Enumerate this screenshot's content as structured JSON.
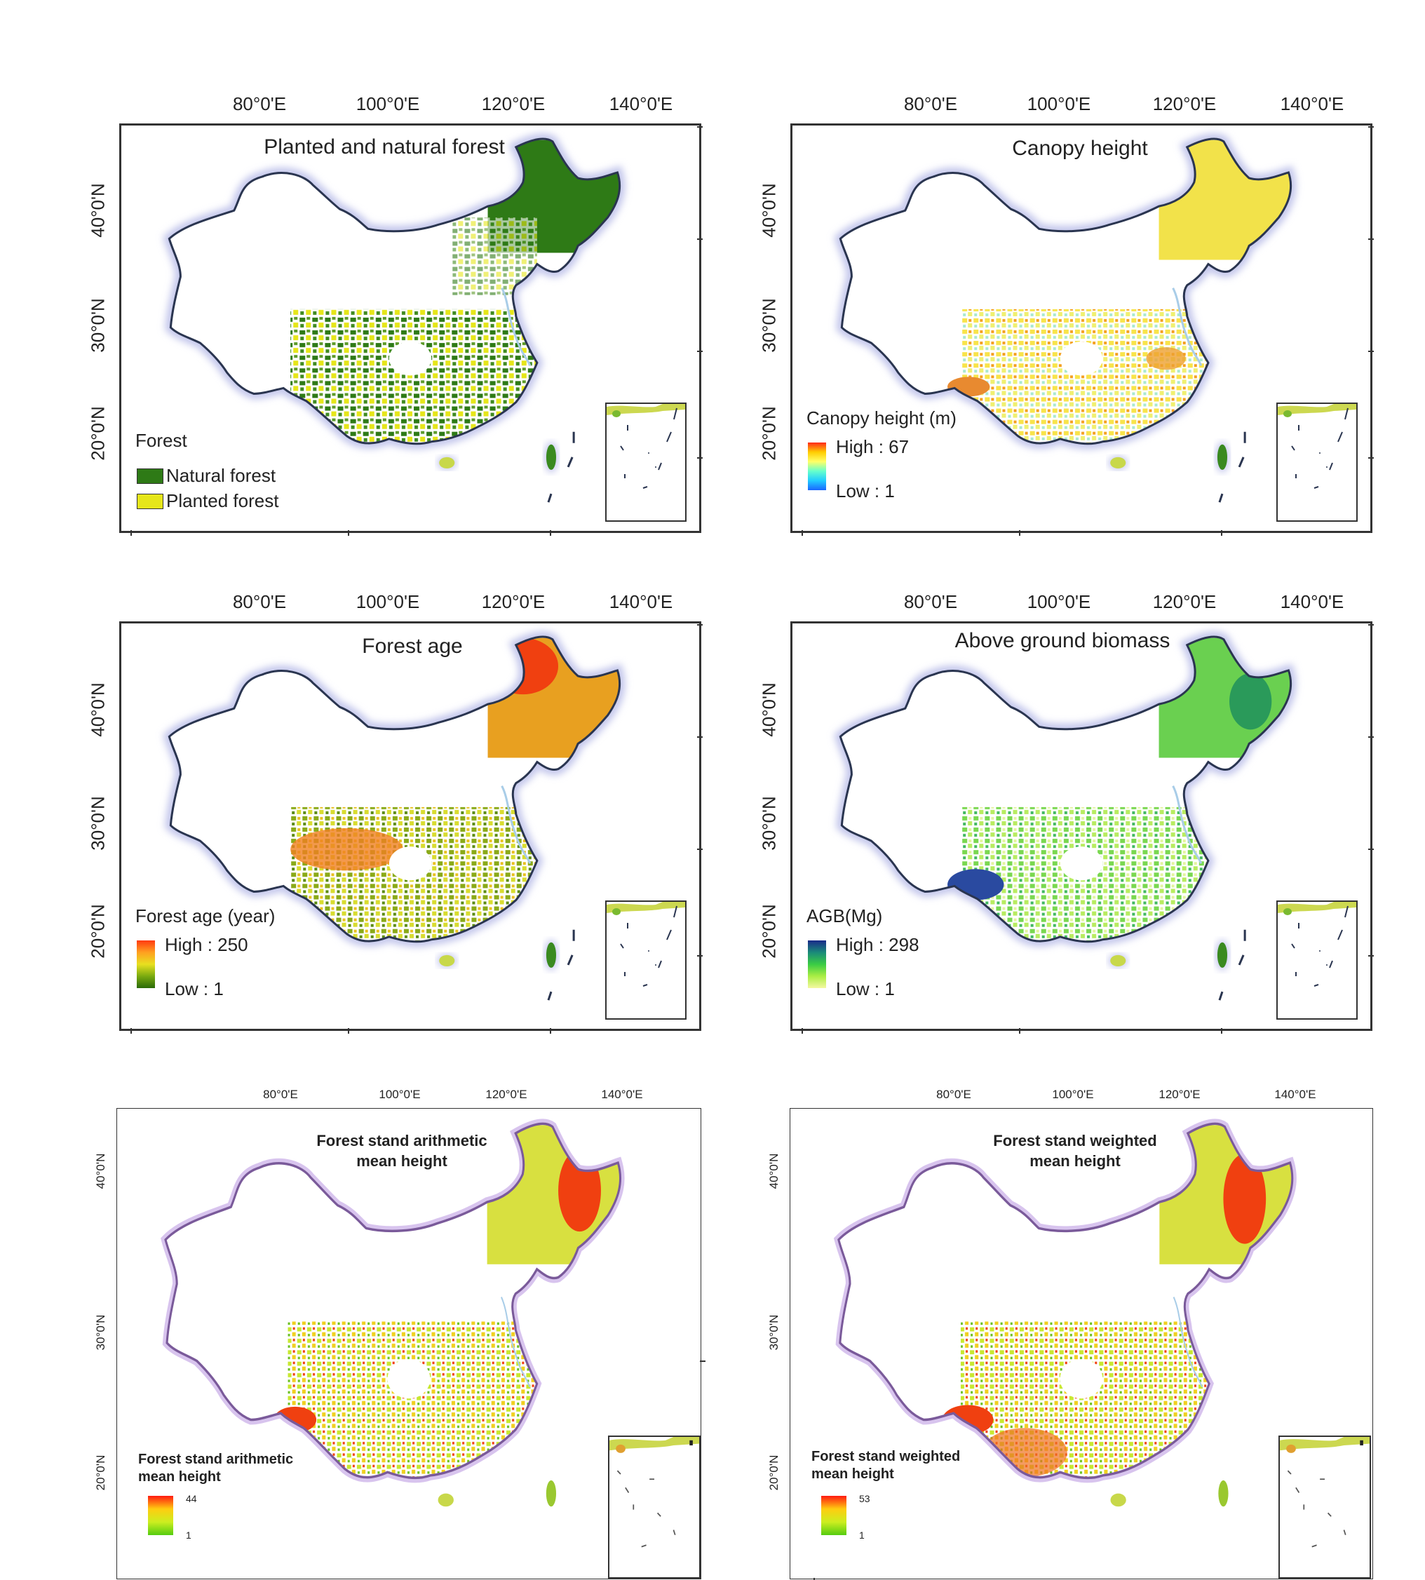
{
  "colors": {
    "natural": "#2e7a16",
    "planted": "#e6e61a",
    "boundary": "#2a3550",
    "boundary_glow": "#c5c8ec",
    "boundary_purple": "#7a5a9a",
    "river": "#a9cde8"
  },
  "panels": [
    {
      "id": "planted-natural",
      "title": "Planted and natural forest",
      "lon_labels": [
        "80°0'E",
        "100°0'E",
        "120°0'E",
        "140°0'E"
      ],
      "lat_labels": [
        "40°0'N",
        "30°0'N",
        "20°0'N"
      ],
      "legend": {
        "title": "Forest",
        "items": [
          {
            "label": "Natural forest",
            "color": "#2e7a16"
          },
          {
            "label": "Planted forest",
            "color": "#e6e61a"
          }
        ]
      }
    },
    {
      "id": "canopy-height",
      "title": "Canopy height",
      "lon_labels": [
        "80°0'E",
        "100°0'E",
        "120°0'E",
        "140°0'E"
      ],
      "lat_labels": [
        "40°0'N",
        "30°0'N",
        "20°0'N"
      ],
      "legend": {
        "title": "Canopy height (m)",
        "high": "High : 67",
        "low": "Low : 1",
        "ramp": [
          "#ff2a1a",
          "#ffcc00",
          "#ffff66",
          "#66ffcc",
          "#22ccff",
          "#1a66ff"
        ]
      }
    },
    {
      "id": "forest-age",
      "title": "Forest age",
      "lon_labels": [
        "80°0'E",
        "100°0'E",
        "120°0'E",
        "140°0'E"
      ],
      "lat_labels": [
        "40°0'N",
        "30°0'N",
        "20°0'N"
      ],
      "legend": {
        "title": "Forest age (year)",
        "high": "High : 250",
        "low": "Low : 1",
        "ramp": [
          "#ff3a10",
          "#ffa020",
          "#e8e020",
          "#7aaa10",
          "#2a6a08"
        ]
      }
    },
    {
      "id": "agb",
      "title": "Above ground biomass",
      "lon_labels": [
        "80°0'E",
        "100°0'E",
        "120°0'E",
        "140°0'E"
      ],
      "lat_labels": [
        "40°0'N",
        "30°0'N",
        "20°0'N"
      ],
      "legend": {
        "title": "AGB(Mg)",
        "high": "High : 298",
        "low": "Low : 1",
        "ramp": [
          "#1a2a8a",
          "#1a8a7a",
          "#3acc44",
          "#aaee44",
          "#f4f8a0"
        ]
      }
    },
    {
      "id": "arithmetic-height",
      "title_line1": "Forest stand arithmetic",
      "title_line2": "mean height",
      "lon_labels": [
        "80°0'E",
        "100°0'E",
        "120°0'E",
        "140°0'E"
      ],
      "lat_labels": [
        "40°0'N",
        "30°0'N",
        "20°0'N"
      ],
      "legend": {
        "title_line1": "Forest stand arithmetic",
        "title_line2": "mean height",
        "high": "44",
        "low": "1",
        "ramp": [
          "#ff1a10",
          "#ffcc10",
          "#ccee20",
          "#55cc10"
        ]
      }
    },
    {
      "id": "weighted-height",
      "title_line1": "Forest stand weighted",
      "title_line2": "mean height",
      "lon_labels": [
        "80°0'E",
        "100°0'E",
        "120°0'E",
        "140°0'E"
      ],
      "lat_labels": [
        "40°0'N",
        "30°0'N",
        "20°0'N"
      ],
      "legend": {
        "title_line1": "Forest stand weighted",
        "title_line2": "mean height",
        "high": "53",
        "low": "1",
        "ramp": [
          "#ff1a10",
          "#ffcc10",
          "#ccee20",
          "#55cc10"
        ]
      }
    }
  ]
}
